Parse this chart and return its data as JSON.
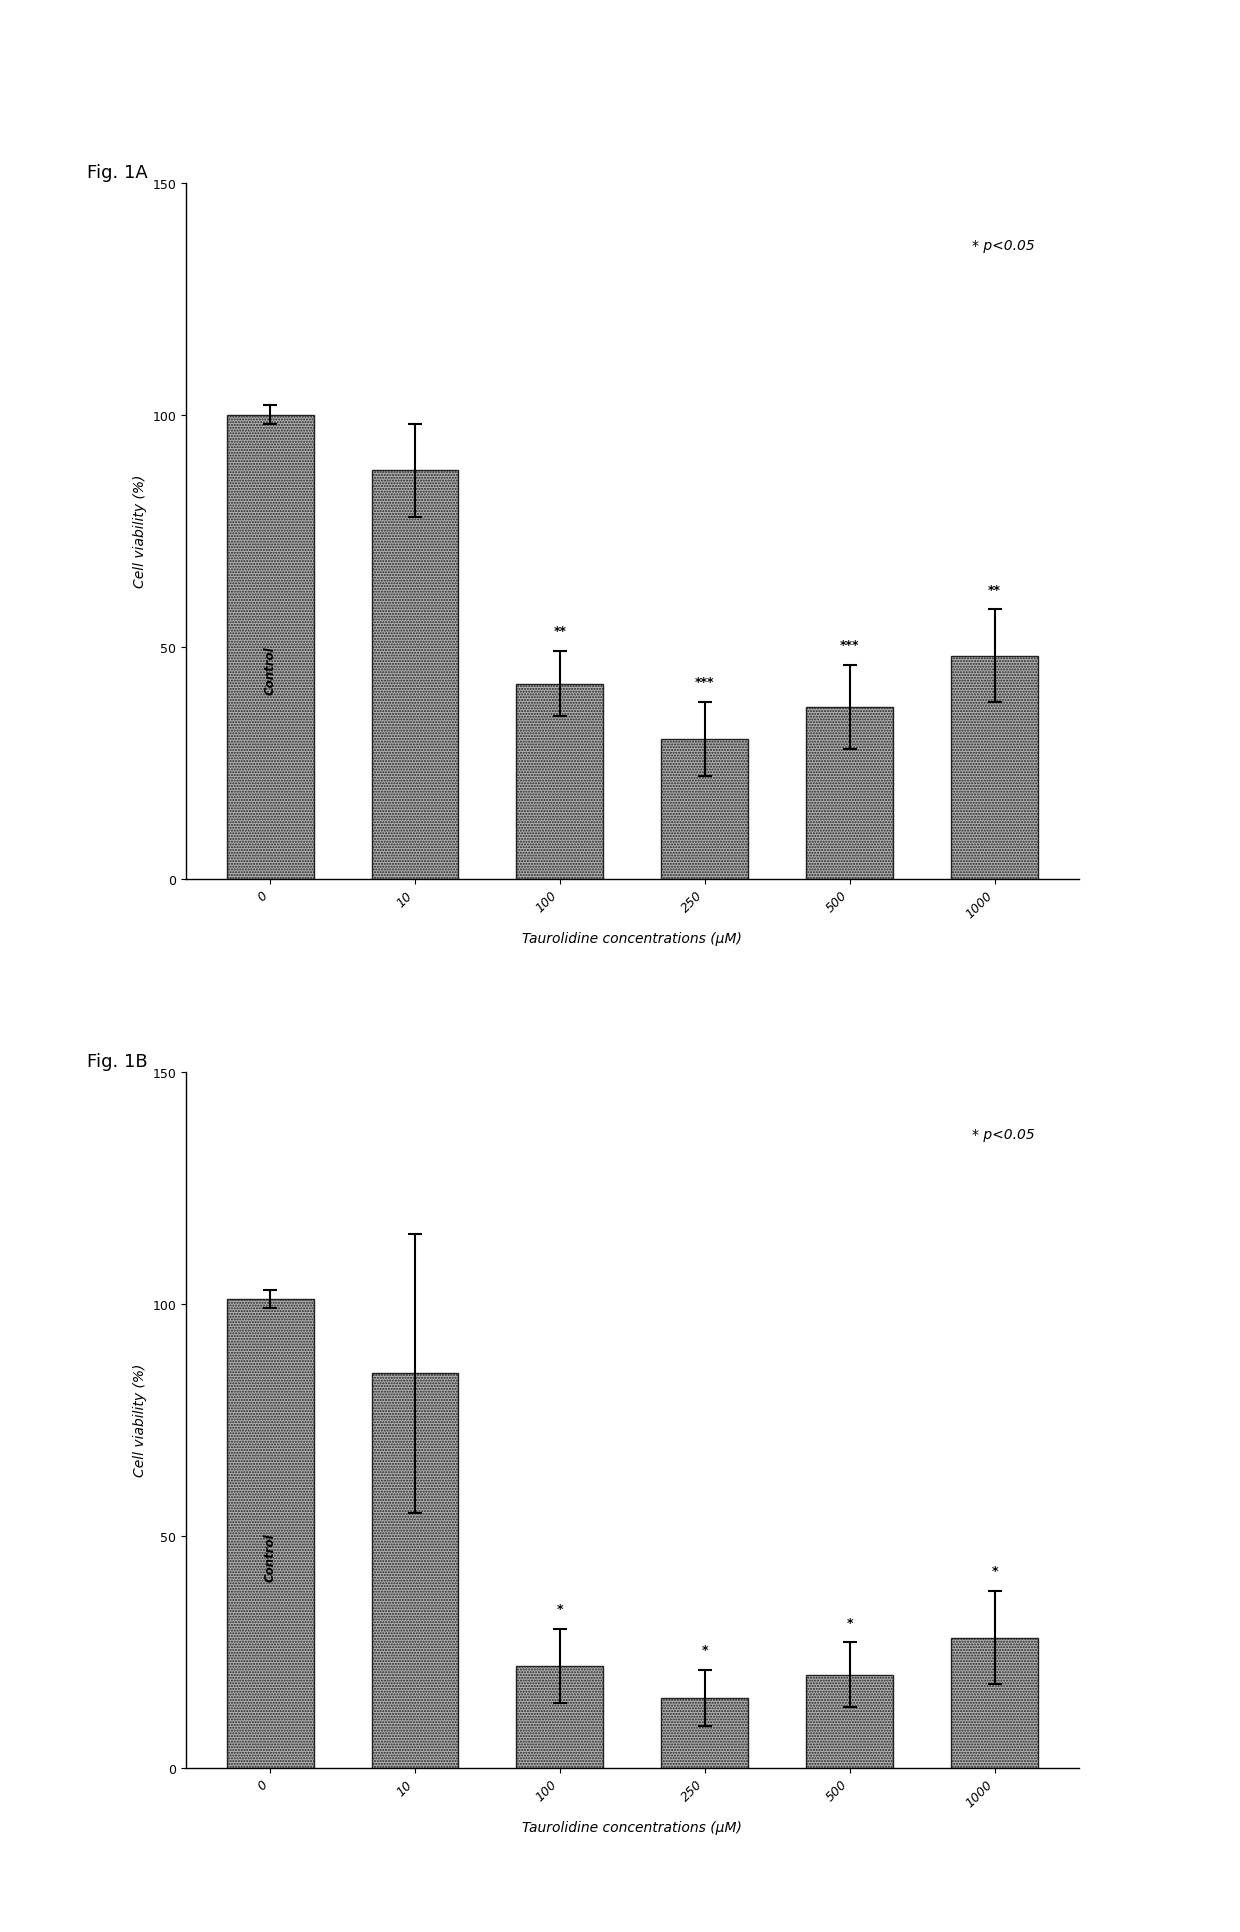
{
  "fig_a": {
    "label": "Fig. 1A",
    "categories": [
      "0",
      "10",
      "100",
      "250",
      "500",
      "1000"
    ],
    "values": [
      100,
      88,
      42,
      30,
      37,
      48
    ],
    "errors": [
      2,
      10,
      7,
      8,
      9,
      10
    ],
    "significance": [
      "",
      "",
      "**",
      "***",
      "***",
      "**"
    ],
    "bar_label": "Control",
    "xlabel": "Taurolidine concentrations (μM)",
    "ylabel": "Cell viability (%)",
    "ylim": [
      0,
      150
    ],
    "yticks": [
      0,
      50,
      100,
      150
    ],
    "p_note": "* p<0.05"
  },
  "fig_b": {
    "label": "Fig. 1B",
    "categories": [
      "0",
      "10",
      "100",
      "250",
      "500",
      "1000"
    ],
    "values": [
      101,
      85,
      22,
      15,
      20,
      28
    ],
    "errors": [
      2,
      30,
      8,
      6,
      7,
      10
    ],
    "significance": [
      "",
      "",
      "*",
      "*",
      "*",
      "*"
    ],
    "bar_label": "Control",
    "xlabel": "Taurolidine concentrations (μM)",
    "ylabel": "Cell viability (%)",
    "ylim": [
      0,
      150
    ],
    "yticks": [
      0,
      50,
      100,
      150
    ],
    "p_note": "* p<0.05"
  },
  "bar_color": "#b0b0b0",
  "bar_edge_color": "#222222",
  "background_color": "#ffffff",
  "fig_label_fontsize": 13,
  "axis_label_fontsize": 10,
  "tick_fontsize": 9,
  "sig_fontsize": 9,
  "p_note_fontsize": 10,
  "bar_width": 0.6
}
